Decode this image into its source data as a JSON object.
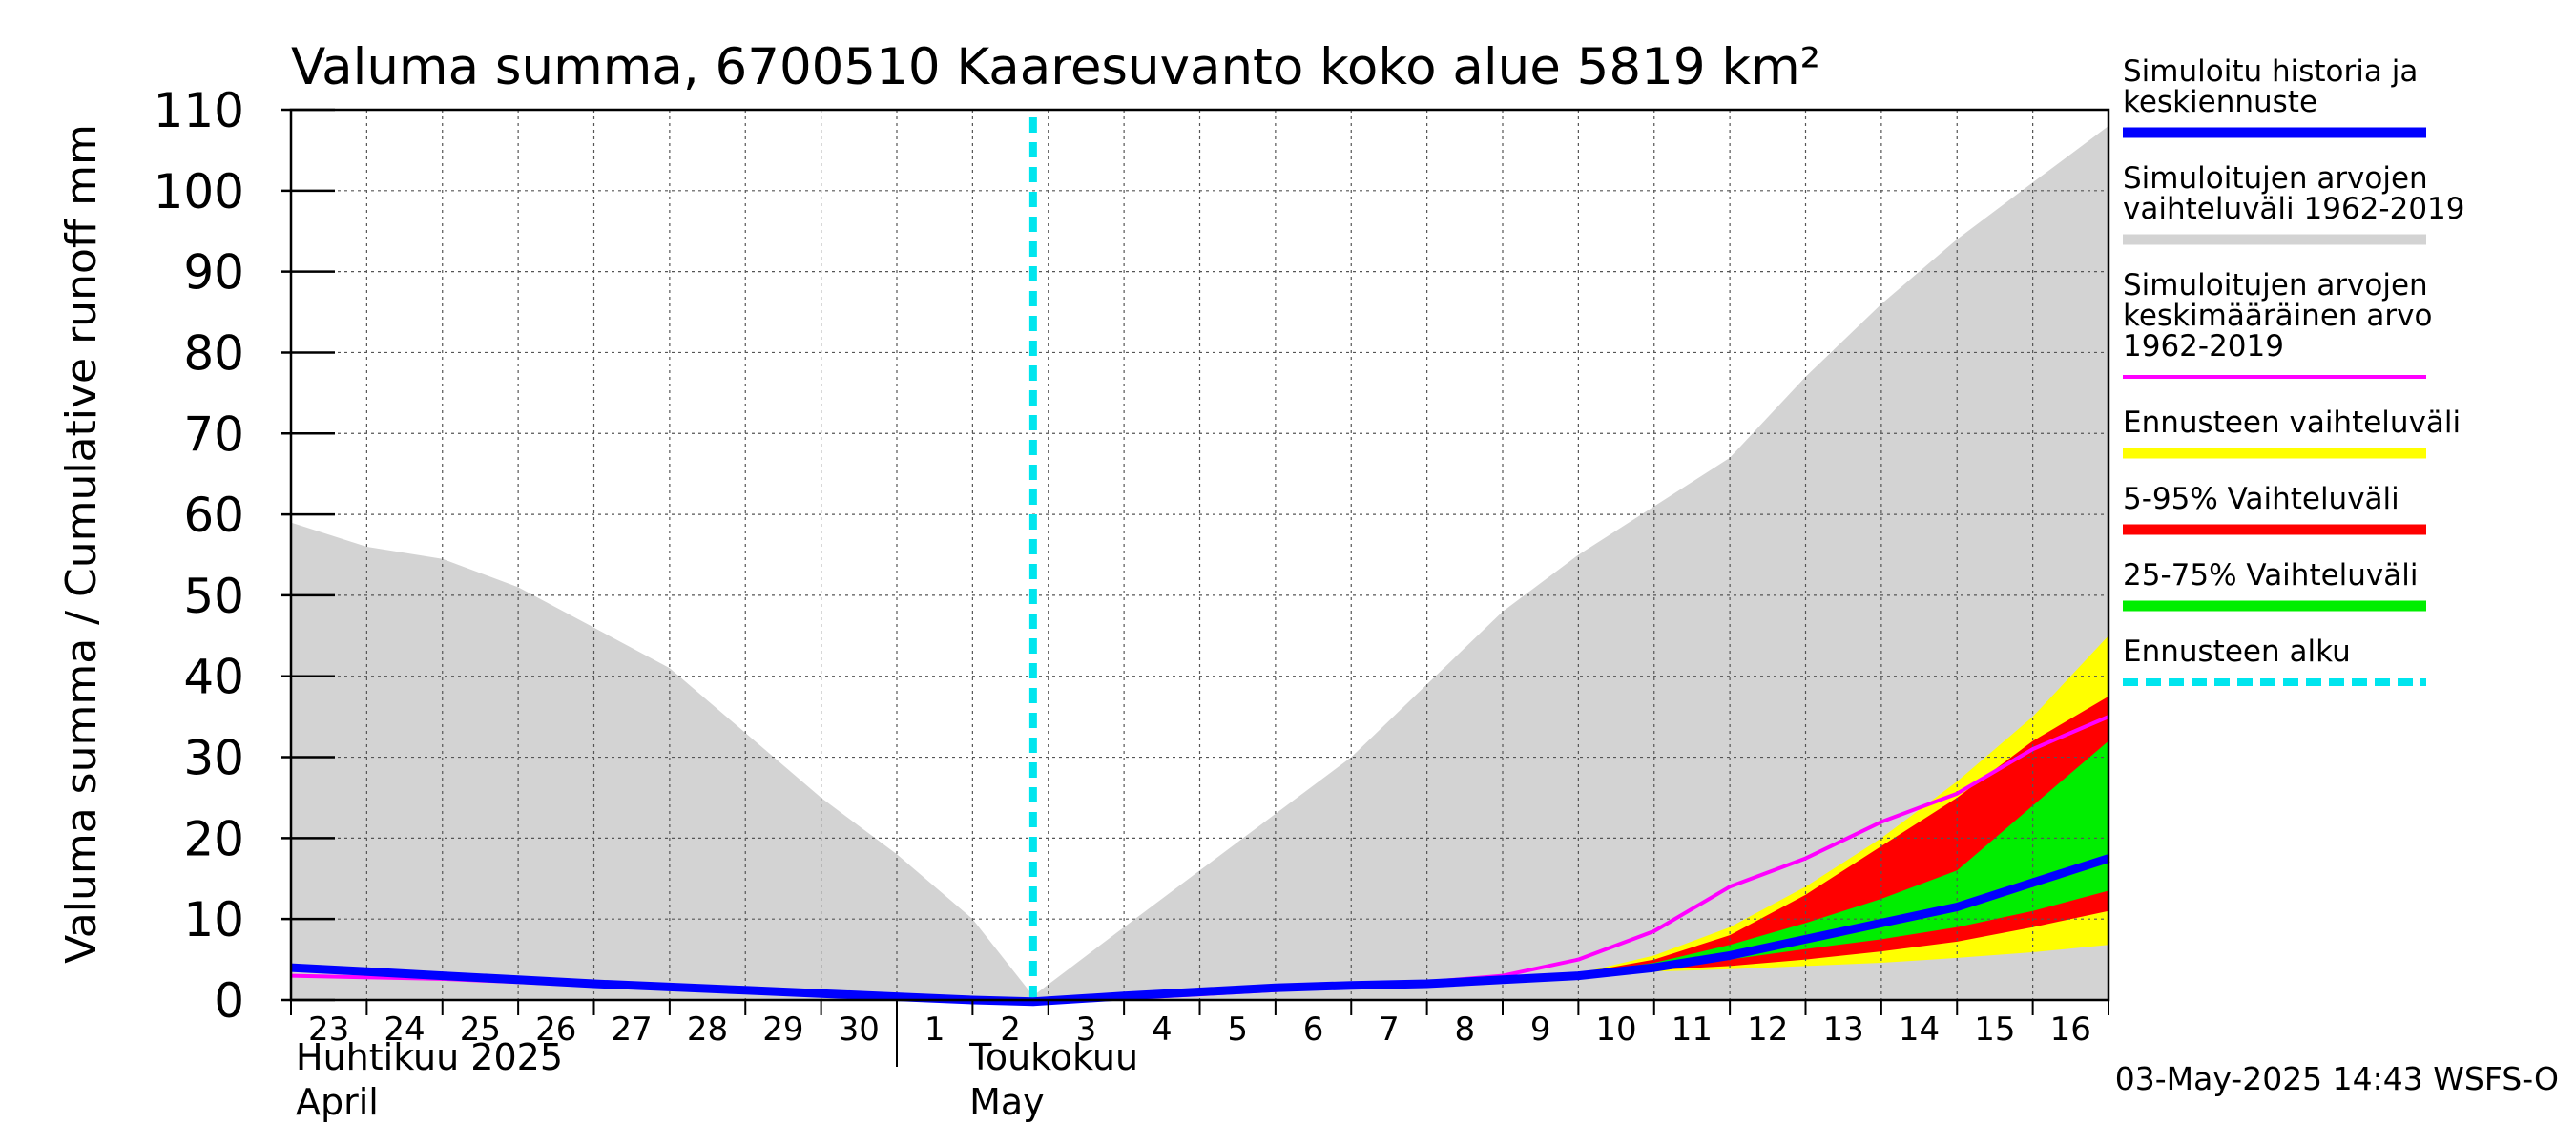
{
  "chart_data": {
    "type": "area",
    "title": "Valuma summa, 6700510 Kaaresuvanto koko alue 5819 km²",
    "ylabel": "Valuma summa / Cumulative runoff    mm",
    "ylim": [
      0,
      110
    ],
    "yticks": [
      0,
      10,
      20,
      30,
      40,
      50,
      60,
      70,
      80,
      90,
      100,
      110
    ],
    "x_range": [
      "2025-04-23",
      "2025-05-17"
    ],
    "x_ticks": [
      {
        "day": 0,
        "label": "23"
      },
      {
        "day": 1,
        "label": "24"
      },
      {
        "day": 2,
        "label": "25"
      },
      {
        "day": 3,
        "label": "26"
      },
      {
        "day": 4,
        "label": "27"
      },
      {
        "day": 5,
        "label": "28"
      },
      {
        "day": 6,
        "label": "29"
      },
      {
        "day": 7,
        "label": "30"
      },
      {
        "day": 8,
        "label": "1"
      },
      {
        "day": 9,
        "label": "2"
      },
      {
        "day": 10,
        "label": "3"
      },
      {
        "day": 11,
        "label": "4"
      },
      {
        "day": 12,
        "label": "5"
      },
      {
        "day": 13,
        "label": "6"
      },
      {
        "day": 14,
        "label": "7"
      },
      {
        "day": 15,
        "label": "8"
      },
      {
        "day": 16,
        "label": "9"
      },
      {
        "day": 17,
        "label": "10"
      },
      {
        "day": 18,
        "label": "11"
      },
      {
        "day": 19,
        "label": "12"
      },
      {
        "day": 20,
        "label": "13"
      },
      {
        "day": 21,
        "label": "14"
      },
      {
        "day": 22,
        "label": "15"
      },
      {
        "day": 23,
        "label": "16"
      }
    ],
    "month_labels": [
      {
        "day": 0,
        "line1": "Huhtikuu  2025",
        "line2": "April"
      },
      {
        "day": 9,
        "line1": "Toukokuu",
        "line2": "May"
      }
    ],
    "forecast_start_day": 9.8,
    "grid": true,
    "legend_position": "right",
    "series": [
      {
        "name": "Simuloitujen arvojen vaihteluväli 1962-2019",
        "kind": "band",
        "color": "#d3d3d3",
        "x": [
          0,
          1,
          2,
          3,
          4,
          5,
          6,
          7,
          8,
          9,
          9.8,
          11,
          12,
          13,
          14,
          15,
          16,
          17,
          18,
          19,
          20,
          21,
          22,
          23,
          24
        ],
        "upper": [
          59,
          56,
          54.5,
          51,
          46,
          41,
          33,
          25,
          18,
          10,
          0.5,
          9,
          16,
          23,
          30,
          39,
          48,
          55,
          61,
          67,
          77,
          86,
          94,
          101,
          108
        ],
        "lower": [
          0,
          0,
          0,
          0,
          0,
          0,
          0,
          0,
          0,
          0,
          0,
          0,
          0,
          0,
          0,
          0,
          0,
          0,
          0,
          0,
          0,
          0,
          0,
          0,
          0
        ]
      },
      {
        "name": "Ennusteen vaihteluväli",
        "kind": "band",
        "color": "#ffff00",
        "x": [
          17,
          18,
          19,
          20,
          21,
          22,
          23,
          24
        ],
        "upper": [
          3.3,
          5.5,
          9,
          14,
          20,
          27,
          35,
          45
        ],
        "lower": [
          3.3,
          3.5,
          3.8,
          4.2,
          4.6,
          5.2,
          5.9,
          6.8
        ]
      },
      {
        "name": "5-95% Vaihteluväli",
        "kind": "band",
        "color": "#ff0000",
        "x": [
          17,
          18,
          19,
          20,
          21,
          22,
          23,
          24
        ],
        "upper": [
          3.3,
          5,
          8,
          13,
          19,
          25,
          32,
          37.5
        ],
        "lower": [
          3.3,
          3.7,
          4.2,
          5,
          6,
          7.2,
          9,
          11
        ]
      },
      {
        "name": "25-75% Vaihteluväli",
        "kind": "band",
        "color": "#00ee00",
        "x": [
          17,
          18,
          19,
          20,
          21,
          22,
          23,
          24
        ],
        "upper": [
          3.3,
          4.6,
          6.8,
          9.5,
          12.5,
          16,
          24,
          32
        ],
        "lower": [
          3.3,
          4,
          5,
          6.3,
          7.5,
          9,
          11,
          13.5
        ]
      },
      {
        "name": "Simuloitujen arvojen keskimääräinen arvo 1962-2019",
        "kind": "line",
        "color": "#ff00ff",
        "x": [
          0,
          1,
          2,
          3,
          4,
          5,
          6,
          7,
          8,
          9,
          9.8,
          11,
          12,
          13,
          14,
          15,
          16,
          17,
          18,
          19,
          20,
          21,
          22,
          23,
          24
        ],
        "y": [
          3,
          2.8,
          2.6,
          2.2,
          1.8,
          1.4,
          1,
          0.6,
          0.3,
          0,
          -0.3,
          0.2,
          0.7,
          1.2,
          1.8,
          2.2,
          3,
          5,
          8.5,
          14,
          17.5,
          22,
          25.5,
          31,
          35
        ]
      },
      {
        "name": "Simuloitu historia ja keskiennuste",
        "kind": "line",
        "color": "#0000ff",
        "x": [
          0,
          1,
          2,
          3,
          4,
          5,
          6,
          7,
          8,
          9,
          9.8,
          11,
          12,
          13,
          14,
          15,
          16,
          17,
          18,
          19,
          20,
          21,
          22,
          23,
          24
        ],
        "y": [
          4,
          3.5,
          3,
          2.5,
          2,
          1.6,
          1.2,
          0.8,
          0.4,
          0,
          -0.2,
          0.5,
          1,
          1.5,
          1.8,
          2,
          2.5,
          3,
          4,
          5.5,
          7.5,
          9.5,
          11.5,
          14.5,
          17.5
        ]
      }
    ]
  },
  "legend": [
    {
      "lines": [
        "Simuloitu historia ja",
        "keskiennuste"
      ],
      "color": "#0000ff",
      "style": "solid"
    },
    {
      "lines": [
        "Simuloitujen arvojen",
        "vaihteluväli 1962-2019"
      ],
      "color": "#d3d3d3",
      "style": "solid"
    },
    {
      "lines": [
        "Simuloitujen arvojen",
        "keskimääräinen arvo",
        "   1962-2019"
      ],
      "color": "#ff00ff",
      "style": "thin"
    },
    {
      "lines": [
        "Ennusteen vaihteluväli"
      ],
      "color": "#ffff00",
      "style": "solid"
    },
    {
      "lines": [
        "5-95% Vaihteluväli"
      ],
      "color": "#ff0000",
      "style": "solid"
    },
    {
      "lines": [
        "25-75% Vaihteluväli"
      ],
      "color": "#00ee00",
      "style": "solid"
    },
    {
      "lines": [
        "Ennusteen alku"
      ],
      "color": "#00e5ee",
      "style": "dashed"
    }
  ],
  "footer": "03-May-2025 14:43 WSFS-O"
}
